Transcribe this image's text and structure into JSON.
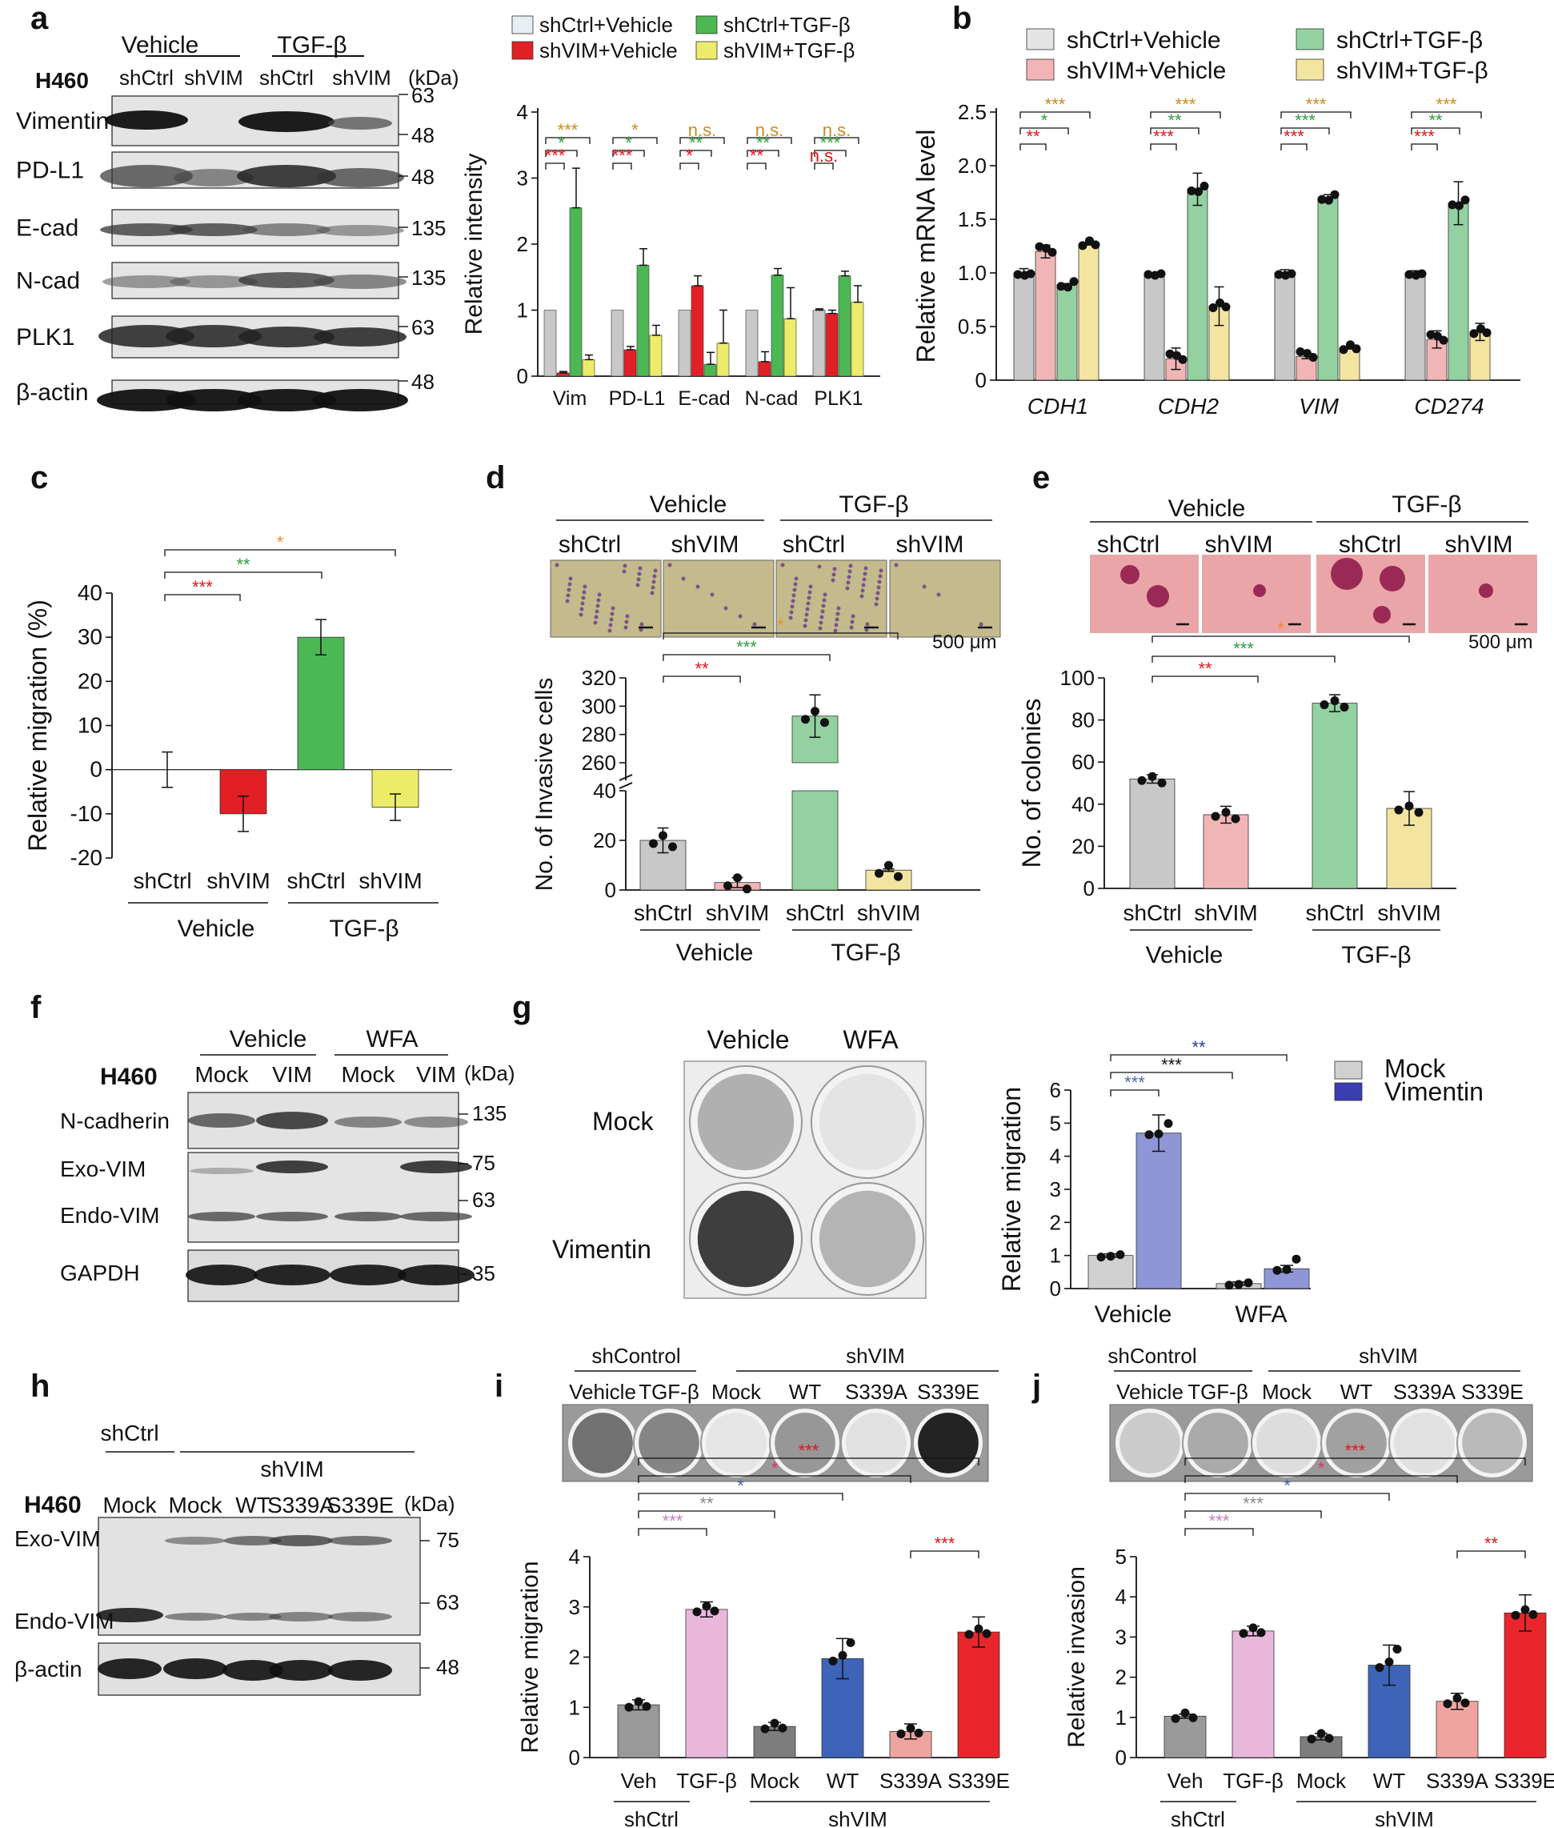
{
  "figure": {
    "panel_letters": [
      "a",
      "b",
      "c",
      "d",
      "e",
      "f",
      "g",
      "h",
      "i",
      "j"
    ],
    "kda": "(kDa)",
    "colors": {
      "grey": "#c8c8c8",
      "red": "#e31f26",
      "green": "#4cb853",
      "yellow": "#ecec6a",
      "pink": "#f2b5b5",
      "lgreen": "#93d1a0",
      "lyellow": "#f3e5a0",
      "mock": "#d0d0d0",
      "vim": "#8e96d6",
      "dgrey": "#9a9a9a",
      "lpink": "#eab7dc",
      "blue": "#3d64b8",
      "salmon": "#f0a4a0",
      "sred": "#e8262b",
      "orange": "#c98c1e",
      "sgreen": "#2e9e3e",
      "sigred": "#e0141e",
      "navy": "#263e8c",
      "lavender": "#c77dc0",
      "gray": "#8a8a8a",
      "steel": "#4a6ab0"
    },
    "a": {
      "cell_line": "H460",
      "group_labels": [
        "Vehicle",
        "TGF-β"
      ],
      "lane_labels": [
        "shCtrl",
        "shVIM",
        "shCtrl",
        "shVIM"
      ],
      "blots": [
        {
          "name": "Vimentin",
          "markers": [
            "63",
            "48"
          ]
        },
        {
          "name": "PD-L1",
          "markers": [
            "48"
          ]
        },
        {
          "name": "E-cad",
          "markers": [
            "135"
          ]
        },
        {
          "name": "N-cad",
          "markers": [
            "135"
          ]
        },
        {
          "name": "PLK1",
          "markers": [
            "63"
          ]
        },
        {
          "name": "β-actin",
          "markers": [
            "48"
          ]
        }
      ],
      "legend": [
        "shCtrl+Vehicle",
        "shVIM+Vehicle",
        "shCtrl+TGF-β",
        "shVIM+TGF-β"
      ],
      "ylabel": "Relative intensity",
      "sig_labels": {
        "t3": "***",
        "s1": "*",
        "ns": "n.s.",
        "s2": "**"
      }
    },
    "b": {
      "legend": [
        "shCtrl+Vehicle",
        "shVIM+Vehicle",
        "shCtrl+TGF-β",
        "shVIM+TGF-β"
      ],
      "ylabel": "Relative mRNA level"
    },
    "c": {
      "ylabel": "Relative migration (%)",
      "labels": [
        "shCtrl",
        "shVIM",
        "shCtrl",
        "shVIM"
      ],
      "groups": [
        "Vehicle",
        "TGF-β"
      ]
    },
    "d": {
      "ylabel": "No. of Invasive cells",
      "labels": [
        "shCtrl",
        "shVIM",
        "shCtrl",
        "shVIM"
      ],
      "groups": [
        "Vehicle",
        "TGF-β"
      ],
      "scale": "500 μm"
    },
    "e": {
      "ylabel": "No. of colonies",
      "labels": [
        "shCtrl",
        "shVIM",
        "shCtrl",
        "shVIM"
      ],
      "groups": [
        "Vehicle",
        "TGF-β"
      ],
      "scale": "500 μm"
    },
    "f": {
      "cell_line": "H460",
      "group_labels": [
        "Vehicle",
        "WFA"
      ],
      "lane_labels": [
        "Mock",
        "VIM",
        "Mock",
        "VIM"
      ],
      "rows": [
        "N-cadherin",
        "Exo-VIM",
        "Endo-VIM",
        "GAPDH"
      ],
      "markers": [
        "135",
        "75",
        "63",
        "35"
      ]
    },
    "g": {
      "col_labels": [
        "Vehicle",
        "WFA"
      ],
      "row_labels": [
        "Mock",
        "Vimentin"
      ],
      "legend": [
        "Mock",
        "Vimentin"
      ],
      "ylabel": "Relative migration",
      "groups": [
        "Vehicle",
        "WFA"
      ]
    },
    "h": {
      "cell_line": "H460",
      "groups": [
        "shCtrl",
        "shVIM"
      ],
      "lane_labels": [
        "Mock",
        "Mock",
        "WT",
        "S339A",
        "S339E"
      ],
      "rows": [
        "Exo-VIM",
        "Endo-VIM",
        "β-actin"
      ],
      "markers": [
        "75",
        "63",
        "48"
      ]
    },
    "i": {
      "groups": [
        "shControl",
        "shVIM"
      ],
      "lane_labels": [
        "Vehicle",
        "TGF-β",
        "Mock",
        "WT",
        "S339A",
        "S339E"
      ],
      "ylabel": "Relative migration",
      "xlabels": [
        "Veh",
        "TGF-β",
        "Mock",
        "WT",
        "S339A",
        "S339E"
      ],
      "bottom_groups": [
        "shCtrl",
        "shVIM"
      ]
    },
    "j": {
      "groups": [
        "shControl",
        "shVIM"
      ],
      "lane_labels": [
        "Vehicle",
        "TGF-β",
        "Mock",
        "WT",
        "S339A",
        "S339E"
      ],
      "ylabel": "Relative invasion",
      "xlabels": [
        "Veh",
        "TGF-β",
        "Mock",
        "WT",
        "S339A",
        "S339E"
      ],
      "bottom_groups": [
        "shCtrl",
        "shVIM"
      ]
    }
  },
  "chart_data": [
    {
      "id": "a_chart",
      "type": "bar",
      "categories": [
        "Vim",
        "PD-L1",
        "E-cad",
        "N-cad",
        "PLK1"
      ],
      "series": [
        {
          "name": "shCtrl+Vehicle",
          "values": [
            1,
            1,
            1,
            1,
            1
          ]
        },
        {
          "name": "shVIM+Vehicle",
          "values": [
            0.05,
            0.4,
            1.37,
            0.22,
            0.95
          ]
        },
        {
          "name": "shCtrl+TGF-β",
          "values": [
            2.55,
            1.68,
            0.18,
            1.53,
            1.52
          ]
        },
        {
          "name": "shVIM+TGF-β",
          "values": [
            0.25,
            0.62,
            0.5,
            0.87,
            1.12
          ]
        }
      ],
      "errors": [
        [
          0,
          0,
          0,
          0,
          0.02
        ],
        [
          0.02,
          0.05,
          0.15,
          0.15,
          0.05
        ],
        [
          0.6,
          0.25,
          0.18,
          0.1,
          0.07
        ],
        [
          0.07,
          0.15,
          0.5,
          0.47,
          0.25
        ]
      ],
      "ylabel": "Relative intensity",
      "ylim": [
        0,
        4
      ],
      "yticks": [
        0,
        1,
        2,
        3,
        4
      ]
    },
    {
      "id": "b_chart",
      "type": "bar",
      "categories": [
        "CDH1",
        "CDH2",
        "VIM",
        "CD274"
      ],
      "series": [
        {
          "name": "shCtrl+Vehicle",
          "values": [
            1.0,
            1.0,
            1.0,
            1.0
          ]
        },
        {
          "name": "shVIM+Vehicle",
          "values": [
            1.2,
            0.2,
            0.22,
            0.38
          ]
        },
        {
          "name": "shCtrl+TGF-β",
          "values": [
            0.89,
            1.78,
            1.7,
            1.65
          ]
        },
        {
          "name": "shVIM+TGF-β",
          "values": [
            1.27,
            0.69,
            0.3,
            0.45
          ]
        }
      ],
      "errors": [
        [
          0.04,
          0,
          0.03,
          0.02
        ],
        [
          0.06,
          0.1,
          0.02,
          0.08
        ],
        [
          0.01,
          0.15,
          0.03,
          0.2
        ],
        [
          0.01,
          0.18,
          0.01,
          0.08
        ]
      ],
      "ylabel": "Relative mRNA level",
      "ylim": [
        0,
        2.5
      ],
      "yticks": [
        0,
        0.5,
        1.0,
        1.5,
        2.0,
        2.5
      ]
    },
    {
      "id": "c_chart",
      "type": "bar",
      "categories": [
        "shCtrl",
        "shVIM",
        "shCtrl",
        "shVIM"
      ],
      "values": [
        0,
        -10,
        30,
        -8.5
      ],
      "errors": [
        4,
        4,
        4,
        3
      ],
      "ylabel": "Relative migration (%)",
      "ylim": [
        -20,
        40
      ],
      "yticks": [
        -20,
        -10,
        0,
        10,
        20,
        30,
        40
      ]
    },
    {
      "id": "d_chart",
      "type": "bar",
      "categories": [
        "shCtrl",
        "shVIM",
        "shCtrl",
        "shVIM"
      ],
      "values": [
        20,
        3,
        293,
        8
      ],
      "errors": [
        5,
        2,
        15,
        0.5
      ],
      "ylabel": "No. of Invasive cells",
      "yticks": [
        0,
        20,
        40,
        260,
        280,
        300,
        320
      ],
      "axis_break": [
        40,
        260
      ]
    },
    {
      "id": "e_chart",
      "type": "bar",
      "categories": [
        "shCtrl",
        "shVIM",
        "shCtrl",
        "shVIM"
      ],
      "values": [
        52,
        35,
        88,
        38
      ],
      "errors": [
        2,
        4,
        4,
        8
      ],
      "ylabel": "No. of colonies",
      "ylim": [
        0,
        100
      ],
      "yticks": [
        0,
        20,
        40,
        60,
        80,
        100
      ]
    },
    {
      "id": "g_chart",
      "type": "bar",
      "categories": [
        "Vehicle",
        "WFA"
      ],
      "series": [
        {
          "name": "Mock",
          "values": [
            1.0,
            0.15
          ]
        },
        {
          "name": "Vimentin",
          "values": [
            4.7,
            0.6
          ]
        }
      ],
      "errors": [
        [
          0.05,
          0.05
        ],
        [
          0.55,
          0.1
        ]
      ],
      "ylabel": "Relative migration",
      "ylim": [
        0,
        6
      ],
      "yticks": [
        0,
        1,
        2,
        3,
        4,
        5,
        6
      ]
    },
    {
      "id": "i_chart",
      "type": "bar",
      "categories": [
        "Veh",
        "TGF-β",
        "Mock",
        "WT",
        "S339A",
        "S339E"
      ],
      "values": [
        1.05,
        2.95,
        0.62,
        1.97,
        0.52,
        2.5
      ],
      "errors": [
        0.1,
        0.15,
        0.08,
        0.4,
        0.15,
        0.3
      ],
      "ylabel": "Relative migration",
      "ylim": [
        0,
        4
      ],
      "yticks": [
        0,
        1,
        2,
        3,
        4
      ]
    },
    {
      "id": "j_chart",
      "type": "bar",
      "categories": [
        "Veh",
        "TGF-β",
        "Mock",
        "WT",
        "S339A",
        "S339E"
      ],
      "values": [
        1.03,
        3.15,
        0.52,
        2.3,
        1.4,
        3.6
      ],
      "errors": [
        0.05,
        0.12,
        0.08,
        0.5,
        0.2,
        0.45
      ],
      "ylabel": "Relative invasion",
      "ylim": [
        0,
        5
      ],
      "yticks": [
        0,
        1,
        2,
        3,
        4,
        5
      ]
    }
  ]
}
